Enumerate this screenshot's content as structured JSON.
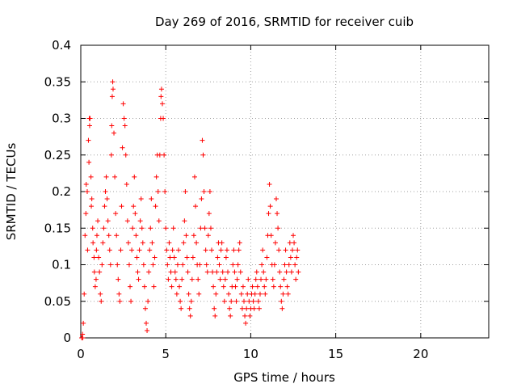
{
  "chart_data": {
    "type": "scatter",
    "title": "Day 269 of 2016, SRMTID for receiver cuib",
    "xlabel": "GPS time / hours",
    "ylabel": "SRMTID / TECUs",
    "xlim": [
      0,
      24
    ],
    "ylim": [
      0,
      0.4
    ],
    "xticks": [
      0,
      5,
      10,
      15,
      20
    ],
    "xtick_labels": [
      "0",
      "5",
      "10",
      "15",
      "20"
    ],
    "yticks": [
      0,
      0.05,
      0.1,
      0.15,
      0.2,
      0.25,
      0.3,
      0.35,
      0.4
    ],
    "ytick_labels": [
      "0",
      "0.05",
      "0.1",
      "0.15",
      "0.2",
      "0.25",
      "0.3",
      "0.35",
      "0.4"
    ],
    "grid": true,
    "marker": "+",
    "color": "#ff0000",
    "series": [
      {
        "name": "SRMTID",
        "points": [
          [
            0.05,
            0.0
          ],
          [
            0.1,
            0.005
          ],
          [
            0.12,
            0.0
          ],
          [
            0.15,
            0.02
          ],
          [
            0.2,
            0.06
          ],
          [
            0.25,
            0.14
          ],
          [
            0.3,
            0.17
          ],
          [
            0.32,
            0.21
          ],
          [
            0.38,
            0.2
          ],
          [
            0.4,
            0.12
          ],
          [
            0.45,
            0.27
          ],
          [
            0.48,
            0.24
          ],
          [
            0.5,
            0.3
          ],
          [
            0.52,
            0.29
          ],
          [
            0.55,
            0.3
          ],
          [
            0.6,
            0.22
          ],
          [
            0.62,
            0.18
          ],
          [
            0.65,
            0.19
          ],
          [
            0.7,
            0.15
          ],
          [
            0.72,
            0.13
          ],
          [
            0.78,
            0.11
          ],
          [
            0.8,
            0.09
          ],
          [
            0.85,
            0.07
          ],
          [
            0.9,
            0.08
          ],
          [
            0.92,
            0.12
          ],
          [
            0.95,
            0.14
          ],
          [
            1.0,
            0.16
          ],
          [
            1.05,
            0.11
          ],
          [
            1.1,
            0.09
          ],
          [
            1.15,
            0.06
          ],
          [
            1.2,
            0.05
          ],
          [
            1.25,
            0.1
          ],
          [
            1.3,
            0.13
          ],
          [
            1.35,
            0.15
          ],
          [
            1.4,
            0.18
          ],
          [
            1.45,
            0.2
          ],
          [
            1.5,
            0.22
          ],
          [
            1.55,
            0.19
          ],
          [
            1.6,
            0.16
          ],
          [
            1.65,
            0.14
          ],
          [
            1.7,
            0.12
          ],
          [
            1.75,
            0.1
          ],
          [
            1.8,
            0.25
          ],
          [
            1.82,
            0.29
          ],
          [
            1.85,
            0.33
          ],
          [
            1.88,
            0.35
          ],
          [
            1.9,
            0.34
          ],
          [
            1.95,
            0.28
          ],
          [
            2.0,
            0.22
          ],
          [
            2.05,
            0.17
          ],
          [
            2.1,
            0.14
          ],
          [
            2.15,
            0.1
          ],
          [
            2.2,
            0.08
          ],
          [
            2.25,
            0.06
          ],
          [
            2.3,
            0.05
          ],
          [
            2.35,
            0.12
          ],
          [
            2.4,
            0.18
          ],
          [
            2.45,
            0.26
          ],
          [
            2.5,
            0.32
          ],
          [
            2.55,
            0.3
          ],
          [
            2.6,
            0.29
          ],
          [
            2.65,
            0.25
          ],
          [
            2.7,
            0.21
          ],
          [
            2.75,
            0.16
          ],
          [
            2.8,
            0.13
          ],
          [
            2.85,
            0.1
          ],
          [
            2.9,
            0.07
          ],
          [
            2.95,
            0.05
          ],
          [
            3.0,
            0.12
          ],
          [
            3.05,
            0.15
          ],
          [
            3.1,
            0.18
          ],
          [
            3.15,
            0.22
          ],
          [
            3.2,
            0.17
          ],
          [
            3.25,
            0.14
          ],
          [
            3.3,
            0.11
          ],
          [
            3.35,
            0.09
          ],
          [
            3.4,
            0.08
          ],
          [
            3.45,
            0.12
          ],
          [
            3.5,
            0.16
          ],
          [
            3.55,
            0.19
          ],
          [
            3.6,
            0.15
          ],
          [
            3.65,
            0.13
          ],
          [
            3.7,
            0.1
          ],
          [
            3.75,
            0.07
          ],
          [
            3.8,
            0.04
          ],
          [
            3.85,
            0.02
          ],
          [
            3.9,
            0.01
          ],
          [
            3.95,
            0.05
          ],
          [
            4.0,
            0.09
          ],
          [
            4.05,
            0.12
          ],
          [
            4.1,
            0.15
          ],
          [
            4.15,
            0.19
          ],
          [
            4.2,
            0.13
          ],
          [
            4.25,
            0.1
          ],
          [
            4.3,
            0.07
          ],
          [
            4.35,
            0.11
          ],
          [
            4.4,
            0.18
          ],
          [
            4.45,
            0.22
          ],
          [
            4.5,
            0.25
          ],
          [
            4.55,
            0.2
          ],
          [
            4.6,
            0.16
          ],
          [
            4.65,
            0.25
          ],
          [
            4.7,
            0.3
          ],
          [
            4.72,
            0.33
          ],
          [
            4.75,
            0.34
          ],
          [
            4.8,
            0.32
          ],
          [
            4.85,
            0.3
          ],
          [
            4.9,
            0.25
          ],
          [
            4.95,
            0.2
          ],
          [
            5.0,
            0.15
          ],
          [
            5.05,
            0.12
          ],
          [
            5.1,
            0.1
          ],
          [
            5.15,
            0.08
          ],
          [
            5.2,
            0.13
          ],
          [
            5.25,
            0.11
          ],
          [
            5.3,
            0.09
          ],
          [
            5.35,
            0.07
          ],
          [
            5.4,
            0.12
          ],
          [
            5.45,
            0.15
          ],
          [
            5.5,
            0.11
          ],
          [
            5.55,
            0.09
          ],
          [
            5.6,
            0.08
          ],
          [
            5.65,
            0.06
          ],
          [
            5.7,
            0.1
          ],
          [
            5.75,
            0.12
          ],
          [
            5.8,
            0.07
          ],
          [
            5.85,
            0.05
          ],
          [
            5.9,
            0.04
          ],
          [
            5.95,
            0.08
          ],
          [
            6.0,
            0.1
          ],
          [
            6.05,
            0.13
          ],
          [
            6.1,
            0.16
          ],
          [
            6.15,
            0.2
          ],
          [
            6.2,
            0.14
          ],
          [
            6.25,
            0.11
          ],
          [
            6.3,
            0.09
          ],
          [
            6.35,
            0.06
          ],
          [
            6.4,
            0.04
          ],
          [
            6.45,
            0.03
          ],
          [
            6.5,
            0.05
          ],
          [
            6.55,
            0.08
          ],
          [
            6.6,
            0.11
          ],
          [
            6.65,
            0.14
          ],
          [
            6.7,
            0.22
          ],
          [
            6.75,
            0.18
          ],
          [
            6.8,
            0.13
          ],
          [
            6.85,
            0.1
          ],
          [
            6.9,
            0.08
          ],
          [
            6.95,
            0.06
          ],
          [
            7.0,
            0.1
          ],
          [
            7.05,
            0.15
          ],
          [
            7.1,
            0.19
          ],
          [
            7.15,
            0.27
          ],
          [
            7.2,
            0.25
          ],
          [
            7.25,
            0.2
          ],
          [
            7.3,
            0.15
          ],
          [
            7.35,
            0.12
          ],
          [
            7.4,
            0.1
          ],
          [
            7.45,
            0.09
          ],
          [
            7.5,
            0.14
          ],
          [
            7.55,
            0.17
          ],
          [
            7.6,
            0.2
          ],
          [
            7.65,
            0.15
          ],
          [
            7.7,
            0.12
          ],
          [
            7.75,
            0.09
          ],
          [
            7.8,
            0.07
          ],
          [
            7.85,
            0.04
          ],
          [
            7.9,
            0.03
          ],
          [
            7.95,
            0.06
          ],
          [
            8.0,
            0.09
          ],
          [
            8.05,
            0.11
          ],
          [
            8.1,
            0.13
          ],
          [
            8.15,
            0.1
          ],
          [
            8.2,
            0.08
          ],
          [
            8.25,
            0.12
          ],
          [
            8.3,
            0.13
          ],
          [
            8.35,
            0.09
          ],
          [
            8.4,
            0.07
          ],
          [
            8.45,
            0.05
          ],
          [
            8.5,
            0.08
          ],
          [
            8.55,
            0.11
          ],
          [
            8.6,
            0.12
          ],
          [
            8.65,
            0.09
          ],
          [
            8.7,
            0.06
          ],
          [
            8.75,
            0.04
          ],
          [
            8.8,
            0.03
          ],
          [
            8.85,
            0.05
          ],
          [
            8.9,
            0.07
          ],
          [
            8.95,
            0.1
          ],
          [
            9.0,
            0.12
          ],
          [
            9.05,
            0.09
          ],
          [
            9.1,
            0.07
          ],
          [
            9.15,
            0.05
          ],
          [
            9.2,
            0.08
          ],
          [
            9.25,
            0.1
          ],
          [
            9.3,
            0.12
          ],
          [
            9.35,
            0.13
          ],
          [
            9.4,
            0.09
          ],
          [
            9.45,
            0.06
          ],
          [
            9.5,
            0.04
          ],
          [
            9.55,
            0.07
          ],
          [
            9.6,
            0.05
          ],
          [
            9.65,
            0.03
          ],
          [
            9.7,
            0.02
          ],
          [
            9.75,
            0.04
          ],
          [
            9.8,
            0.06
          ],
          [
            9.85,
            0.08
          ],
          [
            9.9,
            0.05
          ],
          [
            9.95,
            0.03
          ],
          [
            10.0,
            0.04
          ],
          [
            10.05,
            0.06
          ],
          [
            10.1,
            0.07
          ],
          [
            10.15,
            0.05
          ],
          [
            10.2,
            0.04
          ],
          [
            10.25,
            0.06
          ],
          [
            10.3,
            0.08
          ],
          [
            10.35,
            0.09
          ],
          [
            10.4,
            0.07
          ],
          [
            10.45,
            0.05
          ],
          [
            10.5,
            0.04
          ],
          [
            10.55,
            0.06
          ],
          [
            10.6,
            0.08
          ],
          [
            10.65,
            0.1
          ],
          [
            10.7,
            0.12
          ],
          [
            10.75,
            0.09
          ],
          [
            10.8,
            0.07
          ],
          [
            10.85,
            0.06
          ],
          [
            10.9,
            0.08
          ],
          [
            10.95,
            0.11
          ],
          [
            11.0,
            0.14
          ],
          [
            11.05,
            0.17
          ],
          [
            11.1,
            0.21
          ],
          [
            11.15,
            0.18
          ],
          [
            11.2,
            0.14
          ],
          [
            11.25,
            0.1
          ],
          [
            11.3,
            0.08
          ],
          [
            11.35,
            0.07
          ],
          [
            11.4,
            0.1
          ],
          [
            11.45,
            0.13
          ],
          [
            11.5,
            0.19
          ],
          [
            11.55,
            0.17
          ],
          [
            11.6,
            0.15
          ],
          [
            11.65,
            0.12
          ],
          [
            11.7,
            0.09
          ],
          [
            11.75,
            0.07
          ],
          [
            11.8,
            0.05
          ],
          [
            11.85,
            0.04
          ],
          [
            11.9,
            0.06
          ],
          [
            11.95,
            0.08
          ],
          [
            12.0,
            0.1
          ],
          [
            12.05,
            0.12
          ],
          [
            12.1,
            0.09
          ],
          [
            12.15,
            0.07
          ],
          [
            12.2,
            0.06
          ],
          [
            12.25,
            0.1
          ],
          [
            12.3,
            0.13
          ],
          [
            12.35,
            0.11
          ],
          [
            12.4,
            0.09
          ],
          [
            12.45,
            0.12
          ],
          [
            12.5,
            0.14
          ],
          [
            12.55,
            0.13
          ],
          [
            12.6,
            0.1
          ],
          [
            12.65,
            0.08
          ],
          [
            12.7,
            0.11
          ],
          [
            12.75,
            0.12
          ],
          [
            12.8,
            0.09
          ]
        ]
      }
    ]
  }
}
